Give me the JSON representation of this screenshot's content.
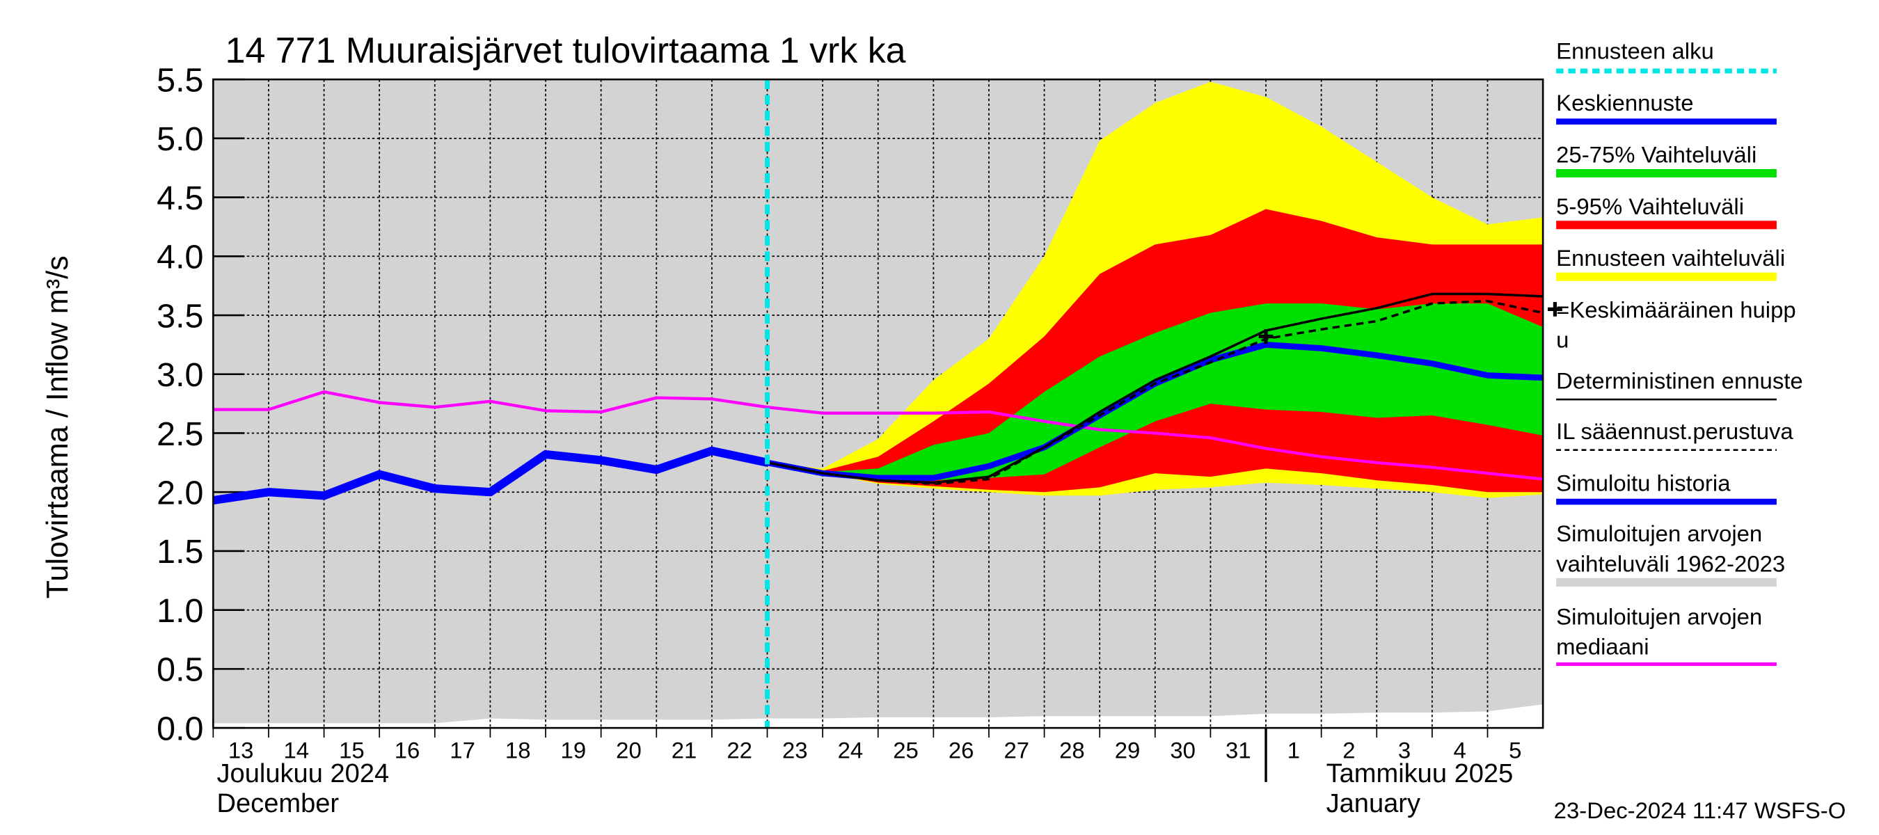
{
  "chart_data": {
    "type": "hydrograph",
    "title": "14 771 Muuraisjärvet tulovirtaama 1 vrk ka",
    "y_label": "Tulovirtaama / Inflow   m³/s",
    "day_labels": [
      "13",
      "14",
      "15",
      "16",
      "17",
      "18",
      "19",
      "20",
      "21",
      "22",
      "23",
      "24",
      "25",
      "26",
      "27",
      "28",
      "29",
      "30",
      "31",
      "1",
      "2",
      "3",
      "4",
      "5"
    ],
    "month_labels": [
      {
        "fi": "Joulukuu  2024",
        "en": "December",
        "start": 0
      },
      {
        "fi": "Tammikuu  2025",
        "en": "January",
        "start": 19
      }
    ],
    "timestamp": "23-Dec-2024 11:47 WSFS-O",
    "xlim": [
      0,
      24
    ],
    "ylim": [
      0,
      5.5
    ],
    "yticks": [
      {
        "value": 0,
        "label": "0.0"
      },
      {
        "value": 0.5,
        "label": "0.5"
      },
      {
        "value": 1,
        "label": "1.0"
      },
      {
        "value": 1.5,
        "label": "1.5"
      },
      {
        "value": 2,
        "label": "2.0"
      },
      {
        "value": 2.5,
        "label": "2.5"
      },
      {
        "value": 3,
        "label": "3.0"
      },
      {
        "value": 3.5,
        "label": "3.5"
      },
      {
        "value": 4,
        "label": "4.0"
      },
      {
        "value": 4.5,
        "label": "4.5"
      },
      {
        "value": 5,
        "label": "5.0"
      },
      {
        "value": 5.5,
        "label": "5.5"
      }
    ],
    "grid": true,
    "forecast_start": {
      "name": "Ennusteen alku",
      "x": 10,
      "color": "#00e5e5"
    },
    "bands": [
      {
        "name": "Simuloitujen arvojen\nvaihteluväli 1962-2023",
        "color": "#d3d3d3",
        "lower": [
          0.04,
          0.04,
          0.04,
          0.04,
          0.04,
          0.08,
          0.07,
          0.07,
          0.07,
          0.07,
          0.08,
          0.08,
          0.09,
          0.09,
          0.09,
          0.1,
          0.1,
          0.1,
          0.1,
          0.12,
          0.12,
          0.13,
          0.13,
          0.14,
          0.2
        ],
        "upper": [
          5.5,
          5.5,
          5.5,
          5.5,
          5.5,
          5.5,
          5.5,
          5.5,
          5.5,
          5.5,
          5.5,
          5.5,
          5.5,
          5.5,
          5.5,
          5.5,
          5.5,
          5.5,
          5.5,
          5.5,
          5.5,
          5.5,
          5.5,
          5.5,
          5.5
        ]
      },
      {
        "name": "Ennusteen vaihteluväli",
        "color": "#ffff00",
        "lower": [
          null,
          null,
          null,
          null,
          null,
          null,
          null,
          null,
          null,
          null,
          2.25,
          2.16,
          2.07,
          2.03,
          2.0,
          1.97,
          1.97,
          2.02,
          2.04,
          2.08,
          2.06,
          2.03,
          2.0,
          1.95,
          1.98
        ],
        "upper": [
          null,
          null,
          null,
          null,
          null,
          null,
          null,
          null,
          null,
          null,
          2.25,
          2.2,
          2.45,
          2.95,
          3.3,
          4.0,
          4.98,
          5.3,
          5.48,
          5.35,
          5.1,
          4.8,
          4.5,
          4.27,
          4.33
        ]
      },
      {
        "name": "5-95% Vaihteluväli",
        "color": "#ff0000",
        "lower": [
          null,
          null,
          null,
          null,
          null,
          null,
          null,
          null,
          null,
          null,
          2.25,
          2.16,
          2.08,
          2.05,
          2.02,
          2.0,
          2.04,
          2.16,
          2.13,
          2.2,
          2.16,
          2.1,
          2.06,
          2.0,
          2.0
        ],
        "upper": [
          null,
          null,
          null,
          null,
          null,
          null,
          null,
          null,
          null,
          null,
          2.25,
          2.18,
          2.3,
          2.6,
          2.92,
          3.32,
          3.85,
          4.1,
          4.18,
          4.4,
          4.3,
          4.16,
          4.1,
          4.1,
          4.1
        ]
      },
      {
        "name": "25-75% Vaihteluväli",
        "color": "#00e000",
        "lower": [
          null,
          null,
          null,
          null,
          null,
          null,
          null,
          null,
          null,
          null,
          2.25,
          2.16,
          2.1,
          2.1,
          2.12,
          2.15,
          2.38,
          2.6,
          2.75,
          2.7,
          2.68,
          2.63,
          2.65,
          2.57,
          2.48
        ],
        "upper": [
          null,
          null,
          null,
          null,
          null,
          null,
          null,
          null,
          null,
          null,
          2.25,
          2.17,
          2.2,
          2.4,
          2.5,
          2.85,
          3.15,
          3.35,
          3.52,
          3.6,
          3.6,
          3.55,
          3.6,
          3.6,
          3.4
        ]
      }
    ],
    "series": [
      {
        "name": "Simuloitujen arvojen\nmediaani",
        "color": "#ff00ff",
        "width": 2.5,
        "dash": "none",
        "values": [
          2.7,
          2.7,
          2.85,
          2.76,
          2.72,
          2.77,
          2.69,
          2.68,
          2.8,
          2.79,
          2.72,
          2.67,
          2.67,
          2.67,
          2.68,
          2.6,
          2.53,
          2.5,
          2.46,
          2.37,
          2.3,
          2.25,
          2.21,
          2.16,
          2.11
        ]
      },
      {
        "name": "Simuloitu historia",
        "color": "#0000ff",
        "width": 7,
        "dash": "none",
        "values": [
          1.93,
          2.0,
          1.97,
          2.15,
          2.03,
          2.0,
          2.32,
          2.27,
          2.19,
          2.35,
          2.25,
          null,
          null,
          null,
          null,
          null,
          null,
          null,
          null,
          null,
          null,
          null,
          null,
          null,
          null
        ]
      },
      {
        "name": "Keskiennuste",
        "color": "#0000ff",
        "width": 5,
        "dash": "none",
        "values": [
          null,
          null,
          null,
          null,
          null,
          null,
          null,
          null,
          null,
          null,
          2.25,
          2.16,
          2.12,
          2.12,
          2.22,
          2.38,
          2.65,
          2.92,
          3.12,
          3.25,
          3.22,
          3.16,
          3.09,
          2.99,
          2.97
        ]
      },
      {
        "name": "Deterministinen ennuste",
        "color": "#000000",
        "width": 2,
        "dash": "none",
        "values": [
          null,
          null,
          null,
          null,
          null,
          null,
          null,
          null,
          null,
          null,
          2.25,
          2.16,
          2.1,
          2.08,
          2.13,
          2.38,
          2.68,
          2.95,
          3.15,
          3.37,
          3.47,
          3.56,
          3.68,
          3.68,
          3.66
        ]
      },
      {
        "name": "IL sääennust.perustuva",
        "color": "#000000",
        "width": 2,
        "dash": "6 4",
        "values": [
          null,
          null,
          null,
          null,
          null,
          null,
          null,
          null,
          null,
          null,
          2.25,
          2.16,
          2.1,
          2.07,
          2.11,
          2.38,
          2.65,
          2.92,
          3.1,
          3.3,
          3.38,
          3.45,
          3.6,
          3.62,
          3.52
        ]
      }
    ],
    "peak": {
      "name": "=Keskimääräinen huipp\nu",
      "x": 19,
      "value": 3.32,
      "color": "#000000"
    }
  }
}
